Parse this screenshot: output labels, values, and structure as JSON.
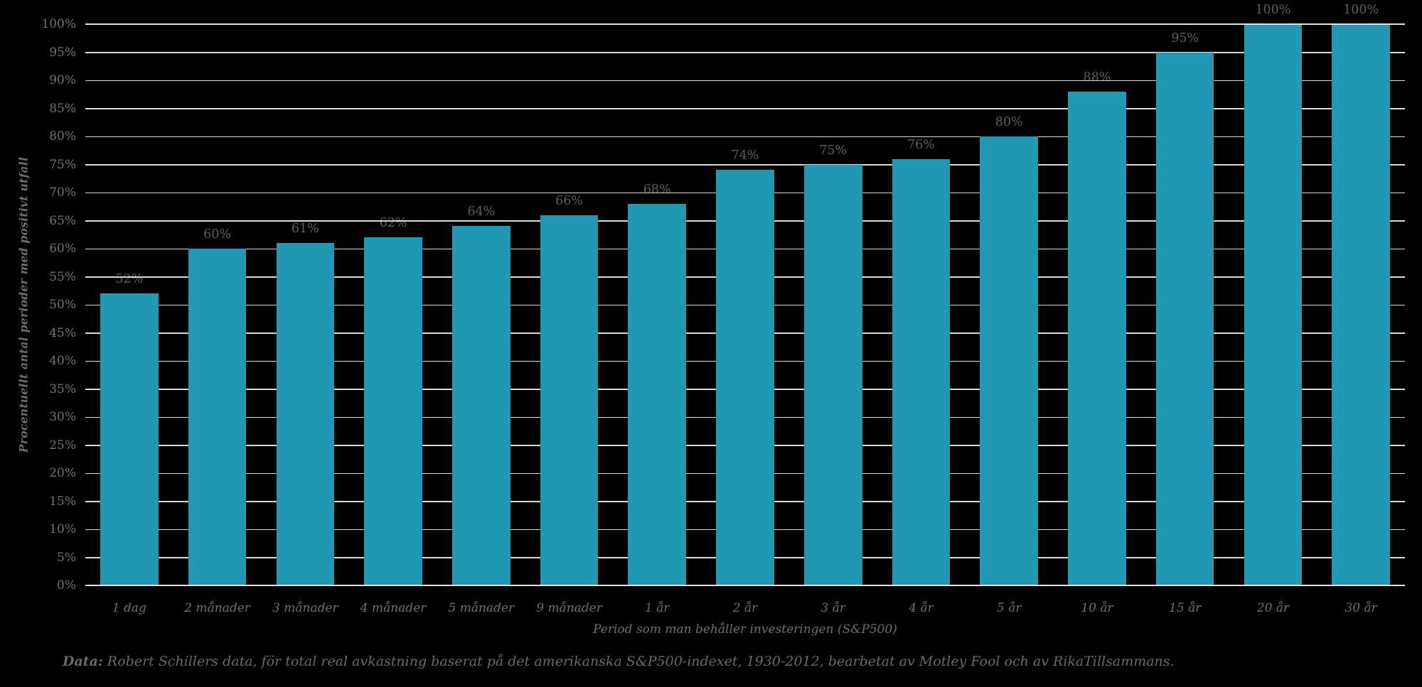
{
  "chart_data": {
    "type": "bar",
    "categories": [
      "1 dag",
      "2 månader",
      "3 månader",
      "4 månader",
      "5 månader",
      "9 månader",
      "1 år",
      "2 år",
      "3 år",
      "4 år",
      "5 år",
      "10 år",
      "15 år",
      "20 år",
      "30 år"
    ],
    "values": [
      52,
      60,
      61,
      62,
      64,
      66,
      68,
      74,
      75,
      76,
      80,
      88,
      95,
      100,
      100
    ],
    "value_labels": [
      "52%",
      "60%",
      "61%",
      "62%",
      "64%",
      "66%",
      "68%",
      "74%",
      "75%",
      "76%",
      "80%",
      "88%",
      "95%",
      "100%",
      "100%"
    ],
    "title": "",
    "xlabel": "Period som man behåller investeringen (S&P500)",
    "ylabel": "Procentuellt antal perioder med positivt utfall",
    "ylim": [
      0,
      100
    ],
    "ytick_step": 5,
    "ytick_labels": [
      "0%",
      "5%",
      "10%",
      "15%",
      "20%",
      "25%",
      "30%",
      "35%",
      "40%",
      "45%",
      "50%",
      "55%",
      "60%",
      "65%",
      "70%",
      "75%",
      "80%",
      "85%",
      "90%",
      "95%",
      "100%"
    ],
    "grid": true,
    "legend_position": "none",
    "bar_fill_ratio": 0.66
  },
  "footer": {
    "prefix": "Data:",
    "text": " Robert Schillers data, för  total real avkastning baserat på det amerikanska S&P500-indexet, 1930-2012, bearbetat av Motley Fool och av RikaTillsammans."
  },
  "colors": {
    "background": "#000000",
    "bar": "#2398b5",
    "gridline": "#d9d9d9",
    "axis_line": "#e3e3e3",
    "y_tick_label": "#727272",
    "x_tick_label": "#6e6e6e",
    "value_label": "#5e5e5e",
    "axis_title": "#6e6e6e",
    "footer_text": "#6a6a6a"
  }
}
